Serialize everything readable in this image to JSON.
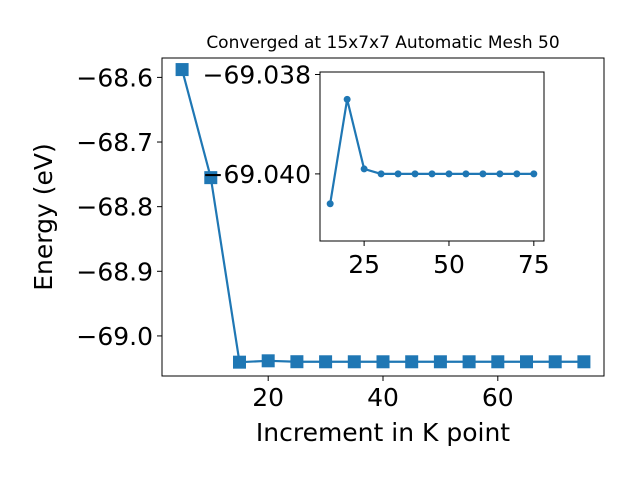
{
  "chart_data": [
    {
      "type": "line",
      "title": "Converged at 15x7x7 Automatic Mesh 50",
      "xlabel": "Increment in K point",
      "ylabel": "Energy (eV)",
      "xlim": [
        1.5,
        78.5
      ],
      "ylim": [
        -69.062,
        -68.57
      ],
      "xticks": [
        20,
        40,
        60
      ],
      "yticks": [
        -68.6,
        -68.7,
        -68.8,
        -68.9,
        -69.0
      ],
      "ytick_labels": [
        "−68.6",
        "−68.7",
        "−68.8",
        "−68.9",
        "−69.0"
      ],
      "marker": "square",
      "color": "#1f77b4",
      "x": [
        5,
        10,
        15,
        20,
        25,
        30,
        35,
        40,
        45,
        50,
        55,
        60,
        65,
        70,
        75
      ],
      "y": [
        -68.5879,
        -68.7551,
        -69.0406,
        -69.0385,
        -69.0399,
        -69.04,
        -69.04,
        -69.04,
        -69.04,
        -69.04,
        -69.04,
        -69.04,
        -69.04,
        -69.04,
        -69.04
      ]
    },
    {
      "type": "line",
      "title": "",
      "xlabel": "",
      "ylabel": "",
      "xlim": [
        12,
        78
      ],
      "ylim": [
        -69.04135,
        -69.03795
      ],
      "xticks": [
        25,
        50,
        75
      ],
      "yticks": [
        -69.04,
        -69.038
      ],
      "ytick_labels": [
        "−69.040",
        "−69.038"
      ],
      "marker": "circle",
      "color": "#1f77b4",
      "x": [
        15,
        20,
        25,
        30,
        35,
        40,
        45,
        50,
        55,
        60,
        65,
        70,
        75
      ],
      "y": [
        -69.0406,
        -69.0385,
        -69.0399,
        -69.04,
        -69.04,
        -69.04,
        -69.04,
        -69.04,
        -69.04,
        -69.04,
        -69.04,
        -69.04,
        -69.04
      ]
    }
  ]
}
